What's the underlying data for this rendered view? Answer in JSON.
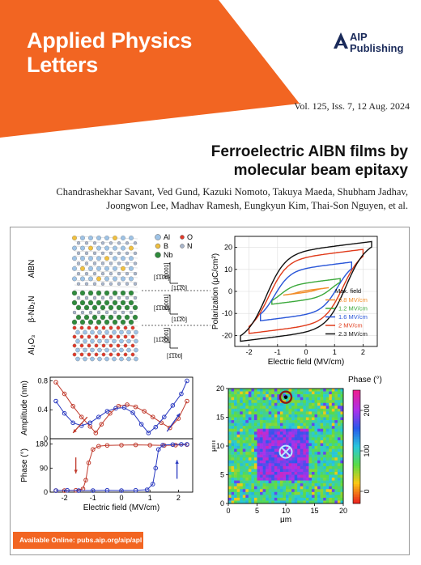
{
  "header": {
    "journal_line1": "Applied Physics",
    "journal_line2": "Letters",
    "publisher_line1": "AIP",
    "publisher_line2": "Publishing",
    "brand_color": "#f26522",
    "publisher_color": "#1a2a5a",
    "icon": "aip-logo-icon"
  },
  "issue": "Vol. 125, Iss. 7, 12 Aug. 2024",
  "article": {
    "title_line1": "Ferroelectric AlBN films by",
    "title_line2": "molecular beam epitaxy",
    "authors_line1": "Chandrashekhar Savant, Ved Gund, Kazuki Nomoto, Takuya Maeda, Shubham Jadhav,",
    "authors_line2": "Joongwon Lee, Madhav Ramesh, Eungkyun Kim, Thai-Son Nguyen, et al."
  },
  "structure": {
    "legend": [
      "Al",
      "O",
      "B",
      "N",
      "Nb"
    ],
    "colors": {
      "Al": "#9ec3e6",
      "O": "#e23a2a",
      "B": "#f0c040",
      "N": "#a9b6cc",
      "Nb": "#2f8a3c"
    },
    "layers": [
      "AlBN",
      "β-Nb₂N",
      "Al₂O₃"
    ],
    "dirs": [
      "[1̅1̅00]",
      "[0001]",
      "[11̅2̅0]",
      "[1̅1̅00]",
      "[0001]",
      "[11̅2̅0]",
      "[11̅2̅0]",
      "[0001]",
      "[1̅1̅00]"
    ]
  },
  "chart_data": [
    {
      "type": "line",
      "xlabel": "Electric field (MV/cm)",
      "ylabel": "Polarization (μC/cm²)",
      "xlim": [
        -2.5,
        2.5
      ],
      "ylim": [
        -25,
        25
      ],
      "xticks": [
        -2,
        -1,
        0,
        1,
        2
      ],
      "yticks": [
        -20,
        -10,
        0,
        10,
        20
      ],
      "grid": true,
      "legend_title": "Max. field",
      "legend_position": "bottom-right",
      "series": [
        {
          "name": "0.8 MV/cm",
          "color": "#f28c28",
          "emax": 0.8,
          "pr": 0.4,
          "ec": 0.3
        },
        {
          "name": "1.2 MV/cm",
          "color": "#3aa83a",
          "emax": 1.2,
          "pr": 3.8,
          "ec": 0.9
        },
        {
          "name": "1.6 MV/cm",
          "color": "#2855d8",
          "emax": 1.6,
          "pr": 10.5,
          "ec": 1.1
        },
        {
          "name": "2 MV/cm",
          "color": "#e03a1a",
          "emax": 2.0,
          "pr": 15.5,
          "ec": 1.3
        },
        {
          "name": "2.3 MV/cm",
          "color": "#111111",
          "emax": 2.3,
          "pr": 18.5,
          "ec": 1.4
        }
      ]
    },
    {
      "type": "scatter",
      "xlabel": "",
      "ylabel": "Amplitude (nm)",
      "xlim": [
        -2.5,
        2.5
      ],
      "ylim": [
        0,
        0.85
      ],
      "yticks": [
        0,
        0.4,
        0.8
      ],
      "series": [
        {
          "name": "",
          "color": "#c0392b",
          "points": [
            [
              -2.3,
              0.78
            ],
            [
              -2.0,
              0.62
            ],
            [
              -1.7,
              0.45
            ],
            [
              -1.4,
              0.3
            ],
            [
              -1.1,
              0.17
            ],
            [
              -0.9,
              0.08
            ],
            [
              -0.7,
              0.2
            ],
            [
              -0.4,
              0.35
            ],
            [
              -0.1,
              0.45
            ],
            [
              0.2,
              0.47
            ],
            [
              0.5,
              0.44
            ],
            [
              0.8,
              0.38
            ],
            [
              1.1,
              0.3
            ],
            [
              1.4,
              0.22
            ],
            [
              1.7,
              0.15
            ],
            [
              2.0,
              0.28
            ],
            [
              2.3,
              0.52
            ]
          ]
        },
        {
          "name": "",
          "color": "#2838c0",
          "points": [
            [
              -2.3,
              0.52
            ],
            [
              -2.0,
              0.35
            ],
            [
              -1.7,
              0.22
            ],
            [
              -1.4,
              0.18
            ],
            [
              -1.1,
              0.22
            ],
            [
              -0.8,
              0.3
            ],
            [
              -0.5,
              0.38
            ],
            [
              -0.2,
              0.42
            ],
            [
              0.1,
              0.43
            ],
            [
              0.4,
              0.36
            ],
            [
              0.7,
              0.2
            ],
            [
              0.95,
              0.08
            ],
            [
              1.2,
              0.16
            ],
            [
              1.5,
              0.3
            ],
            [
              1.8,
              0.46
            ],
            [
              2.1,
              0.62
            ],
            [
              2.3,
              0.8
            ]
          ]
        }
      ]
    },
    {
      "type": "scatter",
      "xlabel": "Electric field (MV/cm)",
      "ylabel": "Phase (°)",
      "xlim": [
        -2.5,
        2.5
      ],
      "ylim": [
        0,
        200
      ],
      "xticks": [
        -2,
        -1,
        0,
        1,
        2
      ],
      "yticks": [
        0,
        90,
        180
      ],
      "series": [
        {
          "name": "",
          "color": "#c0392b",
          "points": [
            [
              2.3,
              178
            ],
            [
              1.9,
              176
            ],
            [
              1.5,
              175
            ],
            [
              1.0,
              176
            ],
            [
              0.5,
              177
            ],
            [
              0.0,
              176
            ],
            [
              -0.5,
              175
            ],
            [
              -0.8,
              172
            ],
            [
              -1.0,
              160
            ],
            [
              -1.15,
              110
            ],
            [
              -1.25,
              45
            ],
            [
              -1.35,
              12
            ],
            [
              -1.6,
              7
            ],
            [
              -2.0,
              6
            ],
            [
              -2.3,
              6
            ]
          ]
        },
        {
          "name": "",
          "color": "#2838c0",
          "points": [
            [
              -2.3,
              6
            ],
            [
              -1.9,
              7
            ],
            [
              -1.5,
              6
            ],
            [
              -1.0,
              6
            ],
            [
              -0.5,
              7
            ],
            [
              0.0,
              6
            ],
            [
              0.5,
              7
            ],
            [
              0.9,
              9
            ],
            [
              1.1,
              30
            ],
            [
              1.2,
              90
            ],
            [
              1.3,
              160
            ],
            [
              1.45,
              176
            ],
            [
              1.8,
              178
            ],
            [
              2.1,
              179
            ],
            [
              2.3,
              179
            ]
          ]
        }
      ]
    },
    {
      "type": "heatmap",
      "title": "Phase (°)",
      "xlabel": "μm",
      "ylabel": "μm",
      "xlim": [
        0,
        20
      ],
      "ylim": [
        0,
        20
      ],
      "xticks": [
        0,
        5,
        10,
        15,
        20
      ],
      "yticks": [
        0,
        5,
        10,
        15,
        20
      ],
      "colorbar_ticks": [
        0,
        100,
        200
      ],
      "colorbar_range": [
        -30,
        250
      ],
      "background_value": 85,
      "square": {
        "x": [
          5,
          14
        ],
        "y": [
          4,
          13
        ],
        "value": 190
      },
      "markers": [
        {
          "symbol": "dot",
          "x": 10,
          "y": 18.5
        },
        {
          "symbol": "cross",
          "x": 10,
          "y": 9
        }
      ]
    }
  ],
  "footer": {
    "available_online": "Available Online: pubs.aip.org/aip/apl"
  }
}
